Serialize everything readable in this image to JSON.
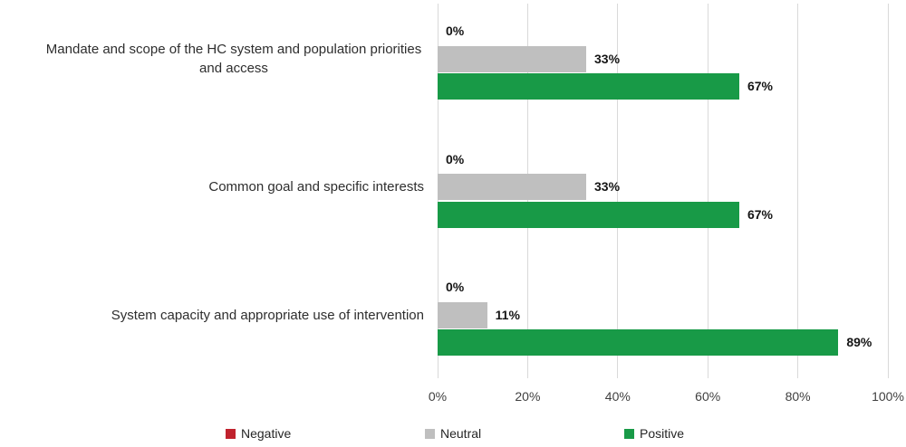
{
  "chart_data": {
    "type": "bar",
    "orientation": "horizontal",
    "title": "",
    "categories": [
      "Mandate and scope of the HC system and population priorities and access",
      "Common goal and specific interests",
      "System capacity and appropriate use of intervention"
    ],
    "series": [
      {
        "name": "Negative",
        "color": "#c0222d",
        "values": [
          0,
          0,
          0
        ]
      },
      {
        "name": "Neutral",
        "color": "#bfbfbf",
        "values": [
          33,
          33,
          11
        ]
      },
      {
        "name": "Positive",
        "color": "#189a47",
        "values": [
          67,
          67,
          89
        ]
      }
    ],
    "value_suffix": "%",
    "xlim": [
      0,
      100
    ],
    "x_ticks": [
      "0%",
      "20%",
      "40%",
      "60%",
      "80%",
      "100%"
    ],
    "grid": true,
    "gridline_color": "#d9d9d9",
    "data_labels": true,
    "legend_position": "bottom"
  },
  "legend": {
    "items": [
      {
        "label": "Negative",
        "color": "#c0222d"
      },
      {
        "label": "Neutral",
        "color": "#bfbfbf"
      },
      {
        "label": "Positive",
        "color": "#189a47"
      }
    ]
  }
}
